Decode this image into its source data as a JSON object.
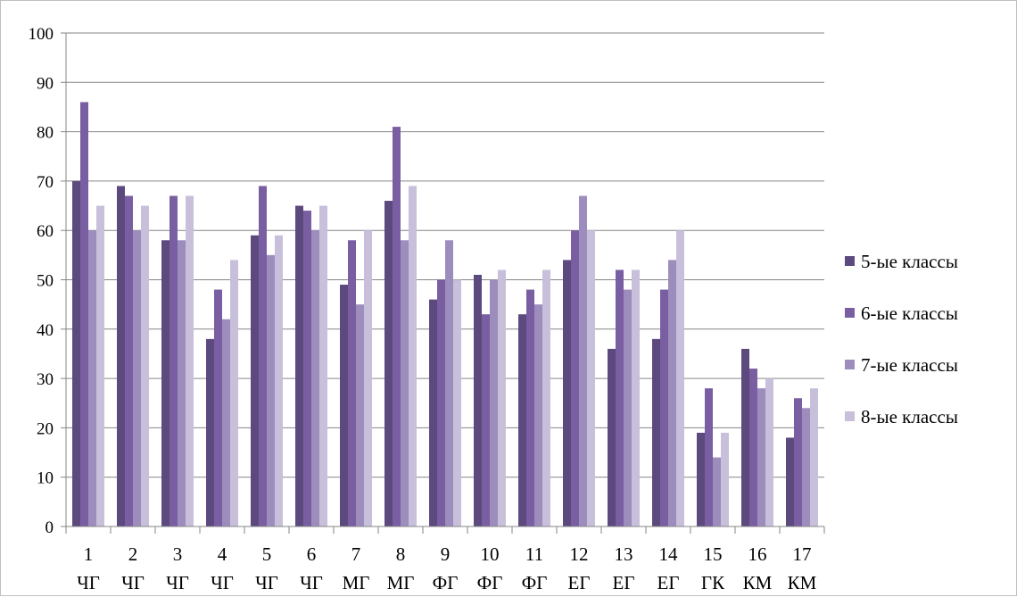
{
  "chart_data": {
    "type": "bar",
    "title": "",
    "xlabel": "",
    "ylabel": "",
    "ylim": [
      0,
      100
    ],
    "yticks": [
      0,
      10,
      20,
      30,
      40,
      50,
      60,
      70,
      80,
      90,
      100
    ],
    "grid": true,
    "legend_position": "right",
    "categories": [
      {
        "num": "1",
        "code": "ЧГ"
      },
      {
        "num": "2",
        "code": "ЧГ"
      },
      {
        "num": "3",
        "code": "ЧГ"
      },
      {
        "num": "4",
        "code": "ЧГ"
      },
      {
        "num": "5",
        "code": "ЧГ"
      },
      {
        "num": "6",
        "code": "ЧГ"
      },
      {
        "num": "7",
        "code": "МГ"
      },
      {
        "num": "8",
        "code": "МГ"
      },
      {
        "num": "9",
        "code": "ФГ"
      },
      {
        "num": "10",
        "code": "ФГ"
      },
      {
        "num": "11",
        "code": "ФГ"
      },
      {
        "num": "12",
        "code": "ЕГ"
      },
      {
        "num": "13",
        "code": "ЕГ"
      },
      {
        "num": "14",
        "code": "ЕГ"
      },
      {
        "num": "15",
        "code": "ГК"
      },
      {
        "num": "16",
        "code": "КМ"
      },
      {
        "num": "17",
        "code": "КМ"
      }
    ],
    "series": [
      {
        "name": "5-ые классы",
        "color": "#5c4a7e",
        "values": [
          70,
          69,
          58,
          38,
          59,
          65,
          49,
          66,
          46,
          51,
          43,
          54,
          36,
          38,
          19,
          36,
          18
        ]
      },
      {
        "name": "6-ые классы",
        "color": "#7a5ea2",
        "values": [
          86,
          67,
          67,
          48,
          69,
          64,
          58,
          81,
          50,
          43,
          48,
          60,
          52,
          48,
          28,
          32,
          26
        ]
      },
      {
        "name": "7-ые классы",
        "color": "#9d8dbd",
        "values": [
          60,
          60,
          58,
          42,
          55,
          60,
          45,
          58,
          58,
          50,
          45,
          67,
          48,
          54,
          14,
          28,
          24
        ]
      },
      {
        "name": "8-ые классы",
        "color": "#c8bfdb",
        "values": [
          65,
          65,
          67,
          54,
          59,
          65,
          60,
          69,
          50,
          52,
          52,
          60,
          52,
          60,
          19,
          30,
          28
        ]
      }
    ],
    "colors": {
      "gridline": "#868686",
      "axis": "#868686",
      "frame": "#bfbfbf"
    }
  }
}
